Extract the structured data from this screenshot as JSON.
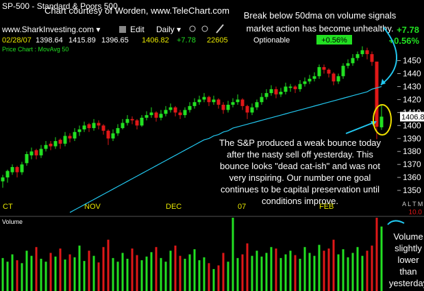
{
  "header": {
    "symbol_line": "SP-500 - Standard & Poors 500",
    "credit": "Chart courtesy of Worden, www.TeleChart.com",
    "site_menu": "www.SharkInvesting.com ▾",
    "edit": "Edit",
    "period_menu": "Daily ▾",
    "date": "02/28/07",
    "change": "+7.78",
    "change_pct": "+0.56%",
    "quote_volume": 22605,
    "optionable": "Optionable",
    "panel_label": "Price Chart : MovAvg 50",
    "right_flags": "A L T M L",
    "volume_scale": "10.0"
  },
  "annotations": {
    "top": [
      "Break below 50dma on volume signals",
      "market action has become unhealthy."
    ],
    "body": [
      "The S&P produced a weak bounce today",
      "after the nasty sell off yesterday. This",
      "bounce looks \"dead cat-ish\" and was not",
      "very inspiring. Our number one goal",
      "continues to be capital preservation until",
      "conditions improve."
    ],
    "volume": [
      "Volume",
      "slightly",
      "lower",
      "than",
      "yesterday"
    ]
  },
  "chart_data": {
    "type": "candlestick",
    "up_color": "#22e022",
    "down_color": "#e01818",
    "ma_color": "#22c8f0",
    "ma_name": "MovAvg 50",
    "categories": [
      "CT",
      null,
      null,
      null,
      null,
      null,
      null,
      null,
      null,
      null,
      null,
      null,
      null,
      null,
      null,
      null,
      null,
      "NOV",
      null,
      null,
      null,
      null,
      null,
      null,
      null,
      null,
      null,
      null,
      null,
      null,
      null,
      null,
      null,
      null,
      "DEC",
      null,
      null,
      null,
      null,
      null,
      null,
      null,
      null,
      null,
      null,
      null,
      null,
      null,
      null,
      "07",
      null,
      null,
      null,
      null,
      null,
      null,
      null,
      null,
      null,
      null,
      null,
      null,
      null,
      null,
      null,
      null,
      "FEB",
      null,
      null,
      null,
      null,
      null,
      null,
      null,
      null,
      null,
      null,
      null,
      null,
      null
    ],
    "ohlc": [
      [
        1357,
        1362,
        1352,
        1360
      ],
      [
        1360,
        1366,
        1356,
        1365
      ],
      [
        1364,
        1370,
        1362,
        1368
      ],
      [
        1368,
        1369,
        1360,
        1364
      ],
      [
        1364,
        1372,
        1362,
        1370
      ],
      [
        1371,
        1380,
        1369,
        1378
      ],
      [
        1377,
        1383,
        1374,
        1380
      ],
      [
        1381,
        1382,
        1374,
        1377
      ],
      [
        1377,
        1385,
        1375,
        1382
      ],
      [
        1382,
        1388,
        1380,
        1385
      ],
      [
        1386,
        1388,
        1381,
        1384
      ],
      [
        1384,
        1391,
        1382,
        1388
      ],
      [
        1389,
        1390,
        1382,
        1386
      ],
      [
        1386,
        1395,
        1384,
        1392
      ],
      [
        1392,
        1394,
        1387,
        1390
      ],
      [
        1390,
        1398,
        1388,
        1395
      ],
      [
        1395,
        1400,
        1392,
        1397
      ],
      [
        1397,
        1403,
        1395,
        1400
      ],
      [
        1401,
        1402,
        1395,
        1398
      ],
      [
        1398,
        1405,
        1396,
        1402
      ],
      [
        1402,
        1404,
        1397,
        1400
      ],
      [
        1400,
        1401,
        1393,
        1396
      ],
      [
        1396,
        1397,
        1385,
        1390
      ],
      [
        1390,
        1397,
        1388,
        1394
      ],
      [
        1394,
        1401,
        1392,
        1398
      ],
      [
        1398,
        1405,
        1397,
        1402
      ],
      [
        1402,
        1408,
        1400,
        1405
      ],
      [
        1405,
        1407,
        1401,
        1404
      ],
      [
        1404,
        1405,
        1397,
        1400
      ],
      [
        1400,
        1408,
        1399,
        1406
      ],
      [
        1406,
        1411,
        1404,
        1408
      ],
      [
        1408,
        1414,
        1406,
        1410
      ],
      [
        1410,
        1411,
        1403,
        1406
      ],
      [
        1406,
        1412,
        1404,
        1409
      ],
      [
        1409,
        1415,
        1407,
        1412
      ],
      [
        1412,
        1417,
        1410,
        1414
      ],
      [
        1414,
        1415,
        1407,
        1410
      ],
      [
        1410,
        1412,
        1405,
        1408
      ],
      [
        1408,
        1414,
        1406,
        1412
      ],
      [
        1412,
        1418,
        1410,
        1415
      ],
      [
        1415,
        1421,
        1413,
        1418
      ],
      [
        1418,
        1423,
        1416,
        1420
      ],
      [
        1420,
        1425,
        1418,
        1422
      ],
      [
        1422,
        1423,
        1415,
        1418
      ],
      [
        1418,
        1423,
        1416,
        1420
      ],
      [
        1420,
        1421,
        1413,
        1416
      ],
      [
        1416,
        1418,
        1409,
        1412
      ],
      [
        1412,
        1419,
        1410,
        1416
      ],
      [
        1416,
        1421,
        1414,
        1418
      ],
      [
        1418,
        1424,
        1416,
        1420
      ],
      [
        1420,
        1421,
        1412,
        1415
      ],
      [
        1415,
        1416,
        1405,
        1410
      ],
      [
        1410,
        1417,
        1408,
        1414
      ],
      [
        1414,
        1420,
        1412,
        1418
      ],
      [
        1418,
        1425,
        1416,
        1422
      ],
      [
        1422,
        1428,
        1420,
        1425
      ],
      [
        1425,
        1431,
        1423,
        1428
      ],
      [
        1428,
        1430,
        1421,
        1424
      ],
      [
        1424,
        1429,
        1422,
        1426
      ],
      [
        1426,
        1433,
        1424,
        1430
      ],
      [
        1429,
        1432,
        1426,
        1430
      ],
      [
        1430,
        1431,
        1425,
        1428
      ],
      [
        1428,
        1435,
        1426,
        1432
      ],
      [
        1432,
        1437,
        1430,
        1434
      ],
      [
        1434,
        1439,
        1432,
        1436
      ],
      [
        1436,
        1441,
        1434,
        1438
      ],
      [
        1438,
        1447,
        1436,
        1445
      ],
      [
        1445,
        1447,
        1440,
        1443
      ],
      [
        1443,
        1444,
        1437,
        1440
      ],
      [
        1440,
        1441,
        1431,
        1434
      ],
      [
        1434,
        1440,
        1432,
        1438
      ],
      [
        1438,
        1448,
        1436,
        1446
      ],
      [
        1446,
        1451,
        1444,
        1448
      ],
      [
        1448,
        1455,
        1446,
        1452
      ],
      [
        1452,
        1457,
        1450,
        1455
      ],
      [
        1455,
        1461,
        1453,
        1458
      ],
      [
        1458,
        1460,
        1451,
        1455
      ],
      [
        1455,
        1457,
        1446,
        1449
      ],
      [
        1449.25,
        1449.25,
        1389.42,
        1399.04
      ],
      [
        1398.64,
        1415.89,
        1396.65,
        1406.82
      ]
    ],
    "ma": [
      null,
      null,
      null,
      null,
      null,
      null,
      null,
      null,
      null,
      null,
      null,
      null,
      null,
      null,
      1333,
      1335,
      1337,
      1339,
      1341,
      1343,
      1345,
      1347,
      1349,
      1351,
      1353,
      1355,
      1357,
      1359,
      1361,
      1363,
      1365,
      1367,
      1369,
      1371,
      1373,
      1375,
      1377,
      1379,
      1381,
      1383,
      1385,
      1387,
      1389,
      1390,
      1392,
      1393,
      1395,
      1396,
      1398,
      1399,
      1400,
      1401,
      1402,
      1403,
      1404,
      1405,
      1406,
      1407,
      1408,
      1409,
      1410,
      1411,
      1412,
      1413,
      1414,
      1415,
      1416,
      1417,
      1418,
      1419,
      1420,
      1421,
      1422,
      1423,
      1424,
      1425,
      1426,
      1428,
      1429,
      1430
    ],
    "volume_label": "Volume",
    "volume": [
      45,
      40,
      50,
      42,
      38,
      55,
      48,
      60,
      44,
      40,
      52,
      47,
      58,
      43,
      50,
      46,
      62,
      41,
      55,
      48,
      39,
      60,
      70,
      45,
      40,
      52,
      44,
      58,
      49,
      42,
      47,
      53,
      60,
      45,
      40,
      55,
      62,
      48,
      44,
      50,
      57,
      42,
      46,
      38,
      30,
      35,
      52,
      40,
      100,
      45,
      50,
      65,
      48,
      55,
      47,
      52,
      60,
      58,
      45,
      50,
      55,
      49,
      44,
      60,
      52,
      48,
      63,
      55,
      58,
      70,
      50,
      57,
      46,
      52,
      60,
      48,
      55,
      62,
      100,
      88
    ],
    "vlim": [
      0,
      100
    ],
    "ylim": [
      1330,
      1464
    ],
    "yticks": [
      1350,
      1360,
      1370,
      1380,
      1390,
      1400,
      1410,
      1420,
      1430,
      1440,
      1450
    ]
  }
}
